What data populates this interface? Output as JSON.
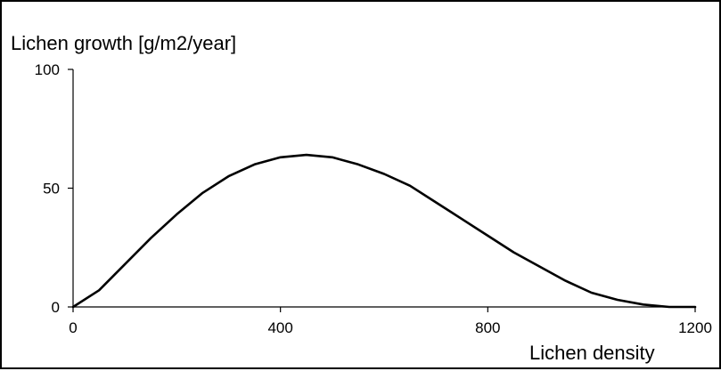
{
  "chart_data": {
    "type": "line",
    "ylabel": "Lichen growth [g/m2/year]",
    "xlabel": "Lichen density",
    "xlim": [
      0,
      1200
    ],
    "ylim": [
      0,
      100
    ],
    "x_ticks": [
      "0",
      "400",
      "800",
      "1200"
    ],
    "y_ticks": [
      "0",
      "50",
      "100"
    ],
    "grid": false,
    "series": [
      {
        "x": [
          0,
          50,
          100,
          150,
          200,
          250,
          300,
          350,
          400,
          450,
          500,
          550,
          600,
          650,
          700,
          750,
          800,
          850,
          900,
          950,
          1000,
          1050,
          1100,
          1150,
          1200
        ],
        "y": [
          0,
          7,
          18,
          29,
          39,
          48,
          55,
          60,
          63,
          64,
          63,
          60,
          56,
          51,
          44,
          37,
          30,
          23,
          17,
          11,
          6,
          3,
          1,
          0,
          0
        ]
      }
    ],
    "line_color": "#000000"
  }
}
